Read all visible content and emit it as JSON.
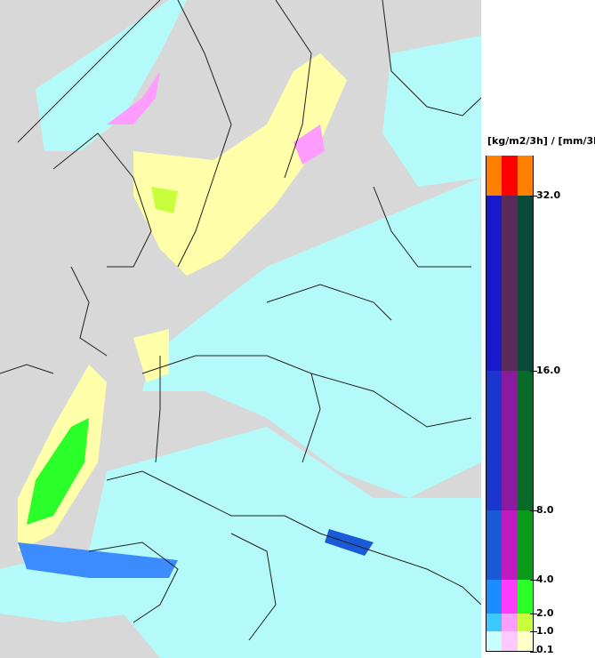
{
  "legend": {
    "unit": "[kg/m2/3h] / [mm/3h]",
    "ticks": [
      "32.0",
      "16.0",
      "8.0",
      "4.0",
      "2.0",
      "1.0",
      "0.1"
    ],
    "bands": [
      {
        "colors": [
          "#ff7f00",
          "#ff0000",
          "#ff7f00"
        ]
      },
      {
        "colors": [
          "#1a1acc",
          "#5a2a5a",
          "#0a4a3a"
        ]
      },
      {
        "colors": [
          "#1a36cc",
          "#8a1aa0",
          "#0a6a2a"
        ]
      },
      {
        "colors": [
          "#1a5ad6",
          "#c01ac0",
          "#0a9a1a"
        ]
      },
      {
        "colors": [
          "#1a8cff",
          "#ff3cff",
          "#2aff2a"
        ]
      },
      {
        "colors": [
          "#3cc8ff",
          "#ff9cff",
          "#c8ff3c"
        ]
      },
      {
        "colors": [
          "#c8ffff",
          "#ffc8ff",
          "#ffffc8"
        ]
      }
    ]
  },
  "colors": {
    "land": "#d8d8d8",
    "border": "#202020",
    "rain_light": "#b4fafa",
    "snow_light": "#ffffaa"
  }
}
